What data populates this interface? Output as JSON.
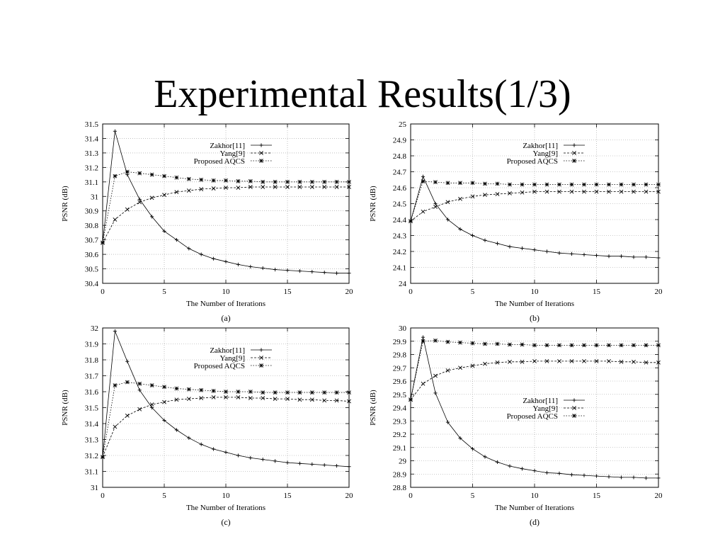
{
  "slide": {
    "title": "Experimental Results(1/3)"
  },
  "chart_data": [
    {
      "panel": "a",
      "type": "line",
      "caption": "(a)",
      "xlabel": "The Number of Iterations",
      "ylabel": "PSNR (dB)",
      "xlim": [
        0,
        20
      ],
      "ylim": [
        30.4,
        31.5
      ],
      "xticks": [
        0,
        5,
        10,
        15,
        20
      ],
      "yticks": [
        "30.4",
        "30.5",
        "30.6",
        "30.7",
        "30.8",
        "30.9",
        "31",
        "31.1",
        "31.2",
        "31.3",
        "31.4",
        "31.5"
      ],
      "grid": true,
      "legend_position": "top-right",
      "x": [
        0,
        1,
        2,
        3,
        4,
        5,
        6,
        7,
        8,
        9,
        10,
        11,
        12,
        13,
        14,
        15,
        16,
        17,
        18,
        19,
        20
      ],
      "series": [
        {
          "name": "Zakhor[11]",
          "marker": "plus",
          "dash": "solid",
          "values": [
            30.68,
            31.45,
            31.15,
            30.98,
            30.86,
            30.76,
            30.7,
            30.64,
            30.6,
            30.57,
            30.55,
            30.53,
            30.515,
            30.505,
            30.495,
            30.49,
            30.485,
            30.48,
            30.475,
            30.47,
            30.47
          ]
        },
        {
          "name": "Yang[9]",
          "marker": "x",
          "dash": "dashed",
          "values": [
            30.68,
            30.84,
            30.91,
            30.96,
            30.99,
            31.01,
            31.03,
            31.04,
            31.05,
            31.055,
            31.06,
            31.06,
            31.065,
            31.065,
            31.065,
            31.065,
            31.065,
            31.065,
            31.065,
            31.065,
            31.065
          ]
        },
        {
          "name": "Proposed AQCS",
          "marker": "star",
          "dash": "dotted",
          "values": [
            30.68,
            31.14,
            31.17,
            31.16,
            31.15,
            31.14,
            31.13,
            31.12,
            31.115,
            31.11,
            31.11,
            31.105,
            31.105,
            31.1,
            31.1,
            31.1,
            31.1,
            31.1,
            31.1,
            31.1,
            31.1
          ]
        }
      ]
    },
    {
      "panel": "b",
      "type": "line",
      "caption": "(b)",
      "xlabel": "The Number of Iterations",
      "ylabel": "PSNR (dB)",
      "xlim": [
        0,
        20
      ],
      "ylim": [
        24,
        25
      ],
      "xticks": [
        0,
        5,
        10,
        15,
        20
      ],
      "yticks": [
        "24",
        "24.1",
        "24.2",
        "24.3",
        "24.4",
        "24.5",
        "24.6",
        "24.7",
        "24.8",
        "24.9",
        "25"
      ],
      "grid": true,
      "legend_position": "top-right",
      "x": [
        0,
        1,
        2,
        3,
        4,
        5,
        6,
        7,
        8,
        9,
        10,
        11,
        12,
        13,
        14,
        15,
        16,
        17,
        18,
        19,
        20
      ],
      "series": [
        {
          "name": "Zakhor[11]",
          "marker": "plus",
          "dash": "solid",
          "values": [
            24.39,
            24.67,
            24.5,
            24.4,
            24.34,
            24.3,
            24.27,
            24.25,
            24.23,
            24.22,
            24.21,
            24.2,
            24.19,
            24.185,
            24.18,
            24.175,
            24.17,
            24.17,
            24.165,
            24.165,
            24.16
          ]
        },
        {
          "name": "Yang[9]",
          "marker": "x",
          "dash": "dashed",
          "values": [
            24.39,
            24.45,
            24.48,
            24.51,
            24.53,
            24.545,
            24.555,
            24.56,
            24.565,
            24.57,
            24.575,
            24.575,
            24.575,
            24.575,
            24.575,
            24.575,
            24.575,
            24.575,
            24.575,
            24.575,
            24.575
          ]
        },
        {
          "name": "Proposed AQCS",
          "marker": "star",
          "dash": "dotted",
          "values": [
            24.39,
            24.64,
            24.635,
            24.63,
            24.63,
            24.63,
            24.625,
            24.625,
            24.62,
            24.62,
            24.62,
            24.62,
            24.62,
            24.62,
            24.62,
            24.62,
            24.62,
            24.62,
            24.62,
            24.62,
            24.62
          ]
        }
      ]
    },
    {
      "panel": "c",
      "type": "line",
      "caption": "(c)",
      "xlabel": "The Number of Iterations",
      "ylabel": "PSNR (dB)",
      "xlim": [
        0,
        20
      ],
      "ylim": [
        31,
        32
      ],
      "xticks": [
        0,
        5,
        10,
        15,
        20
      ],
      "yticks": [
        "31",
        "31.1",
        "31.2",
        "31.3",
        "31.4",
        "31.5",
        "31.6",
        "31.7",
        "31.8",
        "31.9",
        "32"
      ],
      "grid": true,
      "legend_position": "top-right",
      "x": [
        0,
        1,
        2,
        3,
        4,
        5,
        6,
        7,
        8,
        9,
        10,
        11,
        12,
        13,
        14,
        15,
        16,
        17,
        18,
        19,
        20
      ],
      "series": [
        {
          "name": "Zakhor[11]",
          "marker": "plus",
          "dash": "solid",
          "values": [
            31.19,
            31.98,
            31.79,
            31.61,
            31.5,
            31.42,
            31.36,
            31.31,
            31.27,
            31.24,
            31.22,
            31.2,
            31.185,
            31.175,
            31.165,
            31.155,
            31.15,
            31.145,
            31.14,
            31.135,
            31.13
          ]
        },
        {
          "name": "Yang[9]",
          "marker": "x",
          "dash": "dashed",
          "values": [
            31.19,
            31.38,
            31.45,
            31.49,
            31.52,
            31.535,
            31.55,
            31.555,
            31.56,
            31.565,
            31.565,
            31.565,
            31.56,
            31.56,
            31.555,
            31.555,
            31.55,
            31.55,
            31.545,
            31.545,
            31.54
          ]
        },
        {
          "name": "Proposed AQCS",
          "marker": "star",
          "dash": "dotted",
          "values": [
            31.19,
            31.64,
            31.66,
            31.65,
            31.64,
            31.63,
            31.62,
            31.615,
            31.61,
            31.605,
            31.6,
            31.6,
            31.6,
            31.595,
            31.595,
            31.595,
            31.595,
            31.595,
            31.595,
            31.595,
            31.595
          ]
        }
      ]
    },
    {
      "panel": "d",
      "type": "line",
      "caption": "(d)",
      "xlabel": "The Number of Iterations",
      "ylabel": "PSNR (dB)",
      "xlim": [
        0,
        20
      ],
      "ylim": [
        28.8,
        30
      ],
      "xticks": [
        0,
        5,
        10,
        15,
        20
      ],
      "yticks": [
        "28.8",
        "28.9",
        "29",
        "29.1",
        "29.2",
        "29.3",
        "29.4",
        "29.5",
        "29.6",
        "29.7",
        "29.8",
        "29.9",
        "30"
      ],
      "grid": true,
      "legend_position": "center-right",
      "x": [
        0,
        1,
        2,
        3,
        4,
        5,
        6,
        7,
        8,
        9,
        10,
        11,
        12,
        13,
        14,
        15,
        16,
        17,
        18,
        19,
        20
      ],
      "series": [
        {
          "name": "Zakhor[11]",
          "marker": "plus",
          "dash": "solid",
          "values": [
            29.46,
            29.93,
            29.51,
            29.29,
            29.17,
            29.09,
            29.03,
            28.99,
            28.96,
            28.94,
            28.925,
            28.91,
            28.905,
            28.895,
            28.89,
            28.885,
            28.88,
            28.875,
            28.875,
            28.87,
            28.87
          ]
        },
        {
          "name": "Yang[9]",
          "marker": "x",
          "dash": "dashed",
          "values": [
            29.46,
            29.58,
            29.64,
            29.68,
            29.7,
            29.715,
            29.73,
            29.74,
            29.745,
            29.745,
            29.75,
            29.75,
            29.75,
            29.75,
            29.75,
            29.75,
            29.75,
            29.745,
            29.745,
            29.74,
            29.74
          ]
        },
        {
          "name": "Proposed AQCS",
          "marker": "star",
          "dash": "dotted",
          "values": [
            29.46,
            29.9,
            29.905,
            29.895,
            29.89,
            29.885,
            29.88,
            29.88,
            29.875,
            29.875,
            29.87,
            29.87,
            29.87,
            29.87,
            29.87,
            29.87,
            29.87,
            29.87,
            29.87,
            29.87,
            29.87
          ]
        }
      ]
    }
  ]
}
